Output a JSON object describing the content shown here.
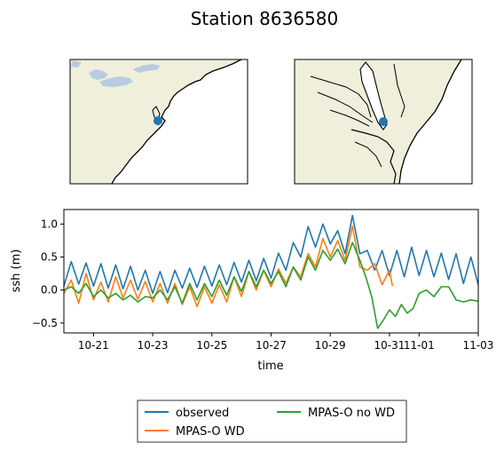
{
  "title": "Station 8636580",
  "colors": {
    "observed": "#1f77b4",
    "wd": "#ff7f0e",
    "nowd": "#2ca02c",
    "land": "#efefdb",
    "water": "#b8cbe0"
  },
  "maps": {
    "left": {
      "marker_icon": "station-marker-icon"
    },
    "right": {
      "marker_icon": "station-marker-icon"
    }
  },
  "chart_data": {
    "type": "line",
    "xlabel": "time",
    "ylabel": "ssh (m)",
    "x_unit": "day",
    "xlim": [
      "10-20",
      "11-03"
    ],
    "ylim": [
      -0.65,
      1.22
    ],
    "xticks": [
      "10-21",
      "10-23",
      "10-25",
      "10-27",
      "10-29",
      "10-31",
      "11-01",
      "11-03"
    ],
    "xtick_days": [
      21,
      23,
      25,
      27,
      29,
      31,
      32,
      34
    ],
    "yticks": [
      -0.5,
      0.0,
      0.5,
      1.0
    ],
    "ytick_labels": [
      "−0.5",
      "0.0",
      "0.5",
      "1.0"
    ],
    "grid": false,
    "legend": "below-center",
    "series": [
      {
        "name": "observed",
        "color": "#1f77b4",
        "x": [
          20,
          20.25,
          20.5,
          20.75,
          21,
          21.25,
          21.5,
          21.75,
          22,
          22.25,
          22.5,
          22.75,
          23,
          23.25,
          23.5,
          23.75,
          24,
          24.25,
          24.5,
          24.75,
          25,
          25.25,
          25.5,
          25.75,
          26,
          26.25,
          26.5,
          26.75,
          27,
          27.25,
          27.5,
          27.75,
          28,
          28.25,
          28.5,
          28.75,
          29,
          29.25,
          29.5,
          29.75,
          30,
          30.25,
          30.5,
          30.75,
          31,
          31.25,
          31.5,
          31.75,
          32,
          32.25,
          32.5,
          32.75,
          33,
          33.25,
          33.5,
          33.75,
          34
        ],
        "y": [
          0.06,
          0.43,
          0.09,
          0.41,
          0.06,
          0.4,
          0.03,
          0.38,
          0.02,
          0.36,
          0.0,
          0.3,
          -0.05,
          0.28,
          -0.04,
          0.3,
          0.03,
          0.33,
          0.04,
          0.36,
          0.06,
          0.38,
          0.08,
          0.42,
          0.12,
          0.45,
          0.14,
          0.48,
          0.18,
          0.56,
          0.3,
          0.72,
          0.5,
          0.96,
          0.65,
          1.0,
          0.7,
          0.9,
          0.55,
          1.13,
          0.55,
          0.6,
          0.3,
          0.6,
          0.22,
          0.6,
          0.2,
          0.65,
          0.22,
          0.6,
          0.2,
          0.56,
          0.16,
          0.55,
          0.1,
          0.5,
          0.08
        ]
      },
      {
        "name": "MPAS-O WD",
        "color": "#ff7f0e",
        "x": [
          20,
          20.25,
          20.5,
          20.75,
          21,
          21.25,
          21.5,
          21.75,
          22,
          22.25,
          22.5,
          22.75,
          23,
          23.25,
          23.5,
          23.75,
          24,
          24.25,
          24.5,
          24.75,
          25,
          25.25,
          25.5,
          25.75,
          26,
          26.25,
          26.5,
          26.75,
          27,
          27.25,
          27.5,
          27.75,
          28,
          28.25,
          28.5,
          28.75,
          29,
          29.25,
          29.5,
          29.75,
          30,
          30.25,
          30.5,
          30.75,
          31,
          31.1
        ],
        "y": [
          -0.05,
          0.15,
          -0.2,
          0.25,
          -0.15,
          0.12,
          -0.18,
          0.2,
          -0.12,
          0.15,
          -0.14,
          0.13,
          -0.18,
          0.1,
          -0.2,
          0.1,
          -0.22,
          0.05,
          -0.25,
          0.05,
          -0.2,
          0.08,
          -0.18,
          0.2,
          -0.1,
          0.28,
          0.0,
          0.3,
          0.05,
          0.32,
          0.1,
          0.35,
          0.2,
          0.55,
          0.35,
          0.78,
          0.5,
          0.75,
          0.45,
          0.97,
          0.35,
          0.3,
          0.4,
          0.08,
          0.3,
          0.06
        ]
      },
      {
        "name": "MPAS-O no WD",
        "color": "#2ca02c",
        "x": [
          20,
          20.25,
          20.5,
          20.75,
          21,
          21.25,
          21.5,
          21.75,
          22,
          22.25,
          22.5,
          22.75,
          23,
          23.25,
          23.5,
          23.75,
          24,
          24.25,
          24.5,
          24.75,
          25,
          25.25,
          25.5,
          25.75,
          26,
          26.25,
          26.5,
          26.75,
          27,
          27.25,
          27.5,
          27.75,
          28,
          28.25,
          28.5,
          28.75,
          29,
          29.25,
          29.5,
          29.75,
          30,
          30.2,
          30.4,
          30.6,
          30.8,
          31,
          31.2,
          31.4,
          31.6,
          31.8,
          32,
          32.25,
          32.5,
          32.75,
          33,
          33.25,
          33.5,
          33.75,
          34
        ],
        "y": [
          0.0,
          0.05,
          -0.05,
          0.1,
          -0.1,
          0.0,
          -0.12,
          -0.05,
          -0.15,
          -0.08,
          -0.18,
          -0.1,
          -0.12,
          0.0,
          -0.15,
          0.05,
          -0.2,
          0.1,
          -0.15,
          0.1,
          -0.1,
          0.15,
          -0.08,
          0.2,
          -0.02,
          0.28,
          0.05,
          0.3,
          0.1,
          0.28,
          0.05,
          0.35,
          0.15,
          0.5,
          0.3,
          0.6,
          0.45,
          0.62,
          0.4,
          0.72,
          0.45,
          0.2,
          -0.1,
          -0.58,
          -0.45,
          -0.3,
          -0.4,
          -0.22,
          -0.35,
          -0.28,
          -0.05,
          0.0,
          -0.1,
          0.05,
          0.05,
          -0.15,
          -0.18,
          -0.15,
          -0.17
        ]
      }
    ]
  }
}
